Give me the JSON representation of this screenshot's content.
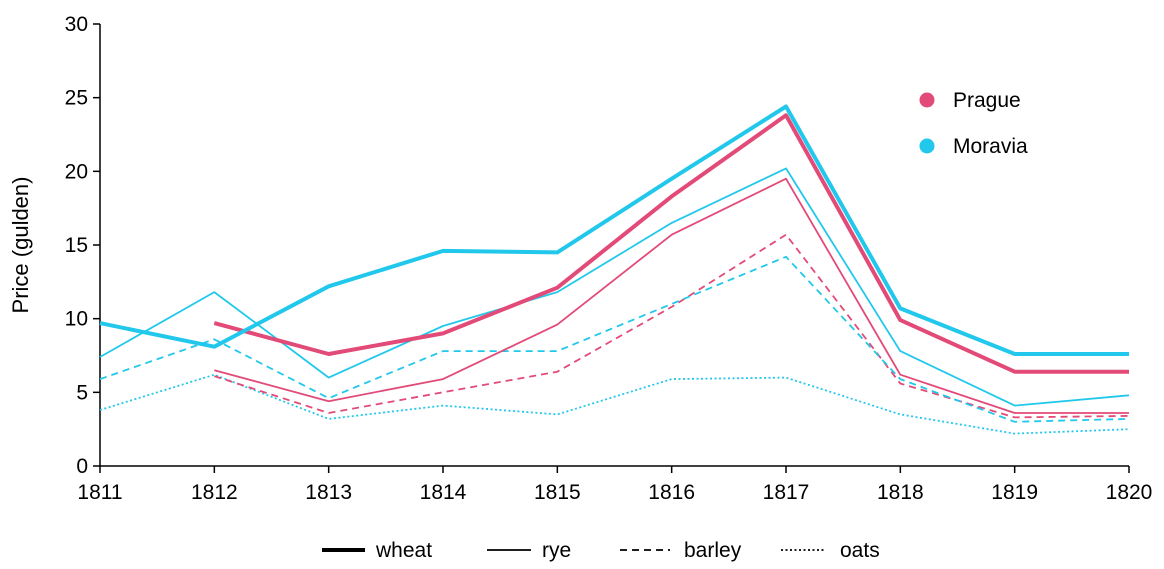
{
  "chart_data": {
    "type": "line",
    "ylabel": "Price (gulden)",
    "ylim": [
      0,
      30
    ],
    "yticks": [
      0,
      5,
      10,
      15,
      20,
      25,
      30
    ],
    "x": [
      "1811",
      "1812",
      "1813",
      "1814",
      "1815",
      "1816",
      "1817",
      "1818",
      "1819",
      "1820"
    ],
    "grid": false,
    "regions": [
      {
        "name": "Prague",
        "color": "#e24a78"
      },
      {
        "name": "Moravia",
        "color": "#22c8ec"
      }
    ],
    "grains": [
      {
        "name": "wheat",
        "style": "thick solid"
      },
      {
        "name": "rye",
        "style": "thin solid"
      },
      {
        "name": "barley",
        "style": "dashed"
      },
      {
        "name": "oats",
        "style": "dotted"
      }
    ],
    "series": [
      {
        "region": "Prague",
        "grain": "wheat",
        "values": [
          null,
          9.7,
          7.6,
          9.0,
          12.1,
          18.3,
          23.8,
          9.9,
          6.4,
          6.4
        ]
      },
      {
        "region": "Prague",
        "grain": "rye",
        "values": [
          null,
          6.5,
          4.4,
          5.9,
          9.6,
          15.7,
          19.5,
          6.2,
          3.6,
          3.6
        ]
      },
      {
        "region": "Prague",
        "grain": "barley",
        "values": [
          null,
          6.1,
          3.6,
          5.0,
          6.4,
          10.8,
          15.7,
          5.6,
          3.3,
          3.4
        ]
      },
      {
        "region": "Moravia",
        "grain": "wheat",
        "values": [
          9.7,
          8.1,
          12.2,
          14.6,
          14.5,
          19.5,
          24.4,
          10.7,
          7.6,
          7.6
        ]
      },
      {
        "region": "Moravia",
        "grain": "rye",
        "values": [
          7.4,
          11.8,
          6.0,
          9.5,
          11.8,
          16.5,
          20.2,
          7.8,
          4.1,
          4.8
        ]
      },
      {
        "region": "Moravia",
        "grain": "barley",
        "values": [
          5.9,
          8.6,
          4.6,
          7.8,
          7.8,
          11.0,
          14.2,
          5.9,
          3.0,
          3.2
        ]
      },
      {
        "region": "Moravia",
        "grain": "oats",
        "values": [
          3.8,
          6.2,
          3.2,
          4.1,
          3.5,
          5.9,
          6.0,
          3.5,
          2.2,
          2.5
        ]
      }
    ],
    "region_legend_position": "top-right",
    "grain_legend_position": "bottom-center"
  }
}
